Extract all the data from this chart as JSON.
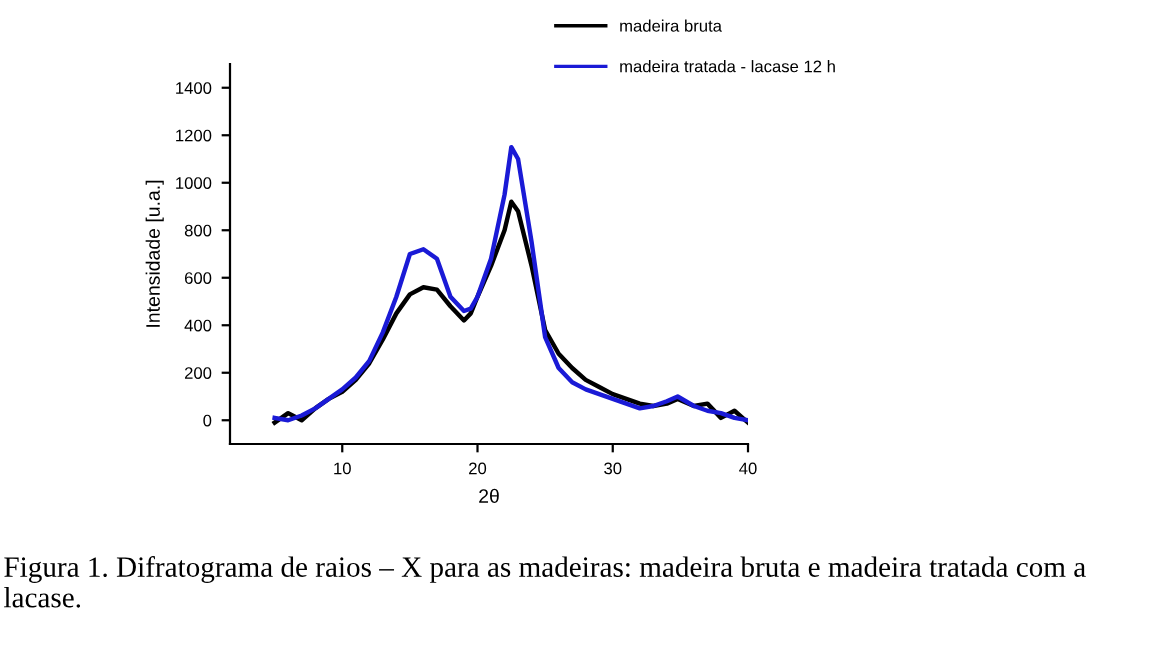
{
  "chart_data": {
    "type": "line",
    "xlabel": "2θ",
    "ylabel": "Intensidade [u.a.]",
    "xlim": [
      1.7,
      40
    ],
    "ylim": [
      -100,
      1500
    ],
    "xticks": [
      10,
      20,
      30,
      40
    ],
    "yticks": [
      0,
      200,
      400,
      600,
      800,
      1000,
      1200,
      1400
    ],
    "grid": false,
    "legend": "top right",
    "line_style": "solid",
    "marker": "none",
    "annotations": [
      "Figura 1. Difratograma de raios – X para as madeiras: madeira bruta e madeira tratada com a lacase."
    ],
    "series": [
      {
        "name": "madeira bruta",
        "color": "#000000",
        "x": [
          5,
          6,
          7,
          8,
          9,
          10,
          11,
          12,
          13,
          14,
          15,
          16,
          17,
          18,
          19,
          19.5,
          20,
          21,
          22,
          22.5,
          23,
          24,
          25,
          26,
          27,
          28,
          29,
          30,
          31,
          32,
          33,
          34,
          34.8,
          36,
          37,
          38,
          39,
          40
        ],
        "values": [
          -10,
          30,
          0,
          50,
          90,
          120,
          170,
          240,
          340,
          450,
          530,
          560,
          550,
          480,
          420,
          450,
          520,
          650,
          800,
          920,
          880,
          650,
          380,
          280,
          220,
          170,
          140,
          110,
          90,
          70,
          60,
          70,
          90,
          60,
          70,
          10,
          40,
          -10
        ]
      },
      {
        "name": "madeira tratada - lacase 12 h",
        "color": "#1a1ad6",
        "x": [
          5,
          6,
          7,
          8,
          9,
          10,
          11,
          12,
          13,
          14,
          15,
          16,
          17,
          18,
          19,
          19.5,
          20,
          21,
          22,
          22.5,
          23,
          24,
          25,
          26,
          27,
          28,
          29,
          30,
          31,
          32,
          33,
          34,
          34.8,
          36,
          37,
          38,
          39,
          40
        ],
        "values": [
          10,
          0,
          20,
          50,
          90,
          130,
          180,
          250,
          370,
          520,
          700,
          720,
          680,
          520,
          460,
          470,
          520,
          680,
          950,
          1150,
          1100,
          750,
          350,
          220,
          160,
          130,
          110,
          90,
          70,
          50,
          60,
          80,
          100,
          60,
          40,
          30,
          10,
          0
        ]
      }
    ]
  }
}
